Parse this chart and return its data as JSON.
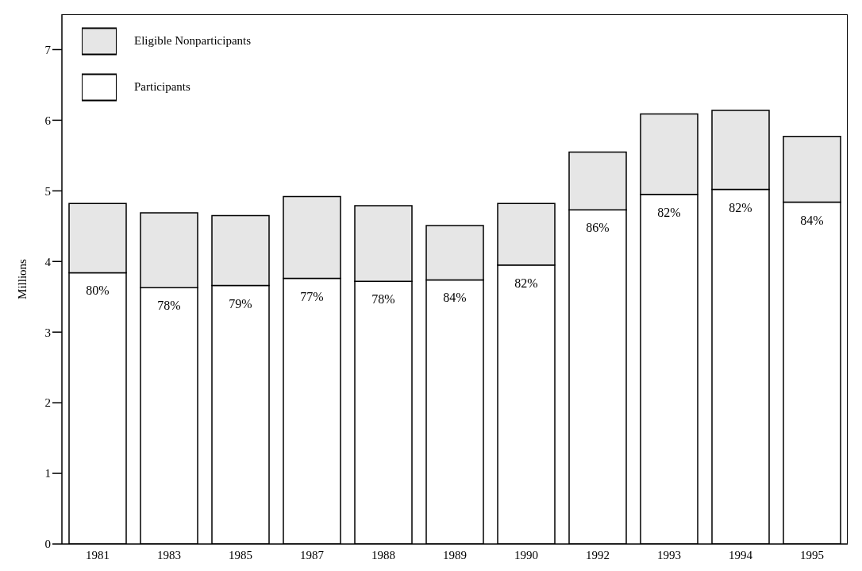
{
  "chart_data": {
    "type": "bar",
    "ylabel": "Millions",
    "categories": [
      "1981",
      "1983",
      "1985",
      "1987",
      "1988",
      "1989",
      "1990",
      "1992",
      "1993",
      "1994",
      "1995"
    ],
    "stacked": true,
    "ylim": [
      0,
      7.5
    ],
    "yticks": [
      0,
      1,
      2,
      3,
      4,
      5,
      6,
      7
    ],
    "grid": false,
    "legend": "top left",
    "series": [
      {
        "name": "Participants",
        "color": "#ffffff",
        "values": [
          3.84,
          3.63,
          3.66,
          3.76,
          3.72,
          3.74,
          3.95,
          4.73,
          4.95,
          5.02,
          4.84
        ]
      },
      {
        "name": "Eligible Nonparticipants",
        "color": "#e6e6e6",
        "values": [
          0.98,
          1.06,
          0.99,
          1.16,
          1.07,
          0.77,
          0.87,
          0.82,
          1.14,
          1.12,
          0.93
        ]
      }
    ],
    "annotations": [
      {
        "text": "80%",
        "x": "1981",
        "y": 3.84
      },
      {
        "text": "78%",
        "x": "1983",
        "y": 3.63
      },
      {
        "text": "79%",
        "x": "1985",
        "y": 3.66
      },
      {
        "text": "77%",
        "x": "1987",
        "y": 3.76
      },
      {
        "text": "78%",
        "x": "1988",
        "y": 3.72
      },
      {
        "text": "84%",
        "x": "1989",
        "y": 3.74
      },
      {
        "text": "82%",
        "x": "1990",
        "y": 3.95
      },
      {
        "text": "86%",
        "x": "1992",
        "y": 4.73
      },
      {
        "text": "82%",
        "x": "1993",
        "y": 4.95
      },
      {
        "text": "82%",
        "x": "1994",
        "y": 5.02
      },
      {
        "text": "84%",
        "x": "1995",
        "y": 4.84
      }
    ]
  }
}
